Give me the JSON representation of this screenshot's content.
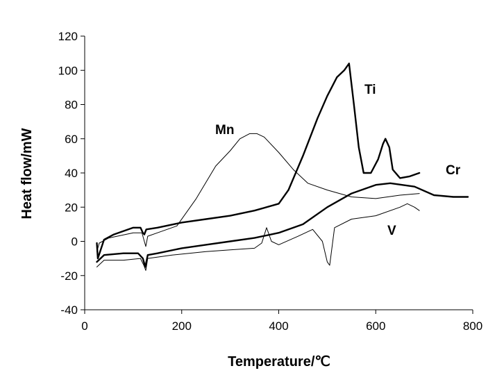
{
  "chart_data": {
    "type": "line",
    "title": "",
    "xlabel": "Temperature/℃",
    "ylabel": "Heat flow/mW",
    "xlim": [
      0,
      800
    ],
    "ylim": [
      -40,
      120
    ],
    "xticks": [
      0,
      200,
      400,
      600,
      800
    ],
    "yticks": [
      -40,
      -20,
      0,
      20,
      40,
      60,
      80,
      100,
      120
    ],
    "grid": false,
    "legend": "none",
    "series": [
      {
        "name": "Ti",
        "line": "thick",
        "points": [
          [
            25,
            -1
          ],
          [
            27,
            -10
          ],
          [
            40,
            1
          ],
          [
            60,
            4
          ],
          [
            100,
            8
          ],
          [
            115,
            8
          ],
          [
            120,
            5
          ],
          [
            123,
            4
          ],
          [
            127,
            7
          ],
          [
            150,
            8
          ],
          [
            200,
            11
          ],
          [
            250,
            13
          ],
          [
            300,
            15
          ],
          [
            350,
            18
          ],
          [
            400,
            22
          ],
          [
            420,
            30
          ],
          [
            450,
            50
          ],
          [
            480,
            72
          ],
          [
            500,
            85
          ],
          [
            520,
            96
          ],
          [
            535,
            100
          ],
          [
            545,
            104
          ],
          [
            555,
            80
          ],
          [
            565,
            55
          ],
          [
            575,
            40
          ],
          [
            590,
            40
          ],
          [
            605,
            48
          ],
          [
            615,
            57
          ],
          [
            620,
            60
          ],
          [
            628,
            55
          ],
          [
            635,
            42
          ],
          [
            650,
            37
          ],
          [
            670,
            38
          ],
          [
            690,
            40
          ]
        ]
      },
      {
        "name": "Mn",
        "line": "thin",
        "points": [
          [
            25,
            -6
          ],
          [
            30,
            -1
          ],
          [
            50,
            2
          ],
          [
            100,
            5
          ],
          [
            118,
            5
          ],
          [
            123,
            0
          ],
          [
            126,
            -3
          ],
          [
            130,
            3
          ],
          [
            150,
            5
          ],
          [
            190,
            9
          ],
          [
            230,
            25
          ],
          [
            270,
            44
          ],
          [
            300,
            53
          ],
          [
            320,
            60
          ],
          [
            340,
            63
          ],
          [
            355,
            63
          ],
          [
            370,
            61
          ],
          [
            400,
            52
          ],
          [
            430,
            42
          ],
          [
            460,
            34
          ],
          [
            500,
            30
          ],
          [
            550,
            26
          ],
          [
            600,
            25
          ],
          [
            650,
            27
          ],
          [
            690,
            28
          ]
        ]
      },
      {
        "name": "Cr",
        "line": "thick",
        "points": [
          [
            25,
            -12
          ],
          [
            40,
            -8
          ],
          [
            80,
            -7
          ],
          [
            110,
            -7
          ],
          [
            120,
            -10
          ],
          [
            125,
            -15
          ],
          [
            130,
            -8
          ],
          [
            150,
            -7
          ],
          [
            200,
            -4
          ],
          [
            250,
            -2
          ],
          [
            300,
            0
          ],
          [
            350,
            2
          ],
          [
            400,
            5
          ],
          [
            450,
            10
          ],
          [
            500,
            20
          ],
          [
            550,
            28
          ],
          [
            600,
            33
          ],
          [
            630,
            34
          ],
          [
            680,
            32
          ],
          [
            720,
            27
          ],
          [
            760,
            26
          ],
          [
            790,
            26
          ]
        ]
      },
      {
        "name": "V",
        "line": "thin",
        "points": [
          [
            25,
            -15
          ],
          [
            40,
            -11
          ],
          [
            80,
            -11
          ],
          [
            115,
            -10
          ],
          [
            122,
            -14
          ],
          [
            126,
            -17
          ],
          [
            130,
            -10
          ],
          [
            180,
            -8
          ],
          [
            250,
            -6
          ],
          [
            300,
            -5
          ],
          [
            350,
            -4
          ],
          [
            365,
            -1
          ],
          [
            375,
            8
          ],
          [
            385,
            0
          ],
          [
            400,
            -2
          ],
          [
            440,
            3
          ],
          [
            470,
            7
          ],
          [
            490,
            0
          ],
          [
            500,
            -12
          ],
          [
            505,
            -14
          ],
          [
            515,
            8
          ],
          [
            550,
            13
          ],
          [
            600,
            15
          ],
          [
            650,
            20
          ],
          [
            665,
            22
          ],
          [
            680,
            20
          ],
          [
            690,
            18
          ]
        ]
      }
    ],
    "annotations": [
      "Ti",
      "Mn",
      "Cr",
      "V"
    ]
  }
}
